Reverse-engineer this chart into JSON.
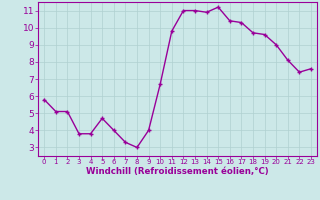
{
  "x": [
    0,
    1,
    2,
    3,
    4,
    5,
    6,
    7,
    8,
    9,
    10,
    11,
    12,
    13,
    14,
    15,
    16,
    17,
    18,
    19,
    20,
    21,
    22,
    23
  ],
  "y": [
    5.8,
    5.1,
    5.1,
    3.8,
    3.8,
    4.7,
    4.0,
    3.3,
    3.0,
    4.0,
    6.7,
    9.8,
    11.0,
    11.0,
    10.9,
    11.2,
    10.4,
    10.3,
    9.7,
    9.6,
    9.0,
    8.1,
    7.4,
    7.6
  ],
  "line_color": "#990099",
  "marker": "+",
  "marker_color": "#990099",
  "bg_color": "#cce8e8",
  "grid_color": "#b0d0d0",
  "xlabel": "Windchill (Refroidissement éolien,°C)",
  "xlabel_color": "#990099",
  "tick_color": "#990099",
  "ylim": [
    2.5,
    11.5
  ],
  "xlim": [
    -0.5,
    23.5
  ],
  "yticks": [
    3,
    4,
    5,
    6,
    7,
    8,
    9,
    10,
    11
  ],
  "xticks": [
    0,
    1,
    2,
    3,
    4,
    5,
    6,
    7,
    8,
    9,
    10,
    11,
    12,
    13,
    14,
    15,
    16,
    17,
    18,
    19,
    20,
    21,
    22,
    23
  ],
  "spine_color": "#990099",
  "line_width": 1.0,
  "marker_size": 3,
  "tick_fontsize_x": 5.0,
  "tick_fontsize_y": 6.5,
  "xlabel_fontsize": 6.2,
  "grid_linewidth": 0.5
}
